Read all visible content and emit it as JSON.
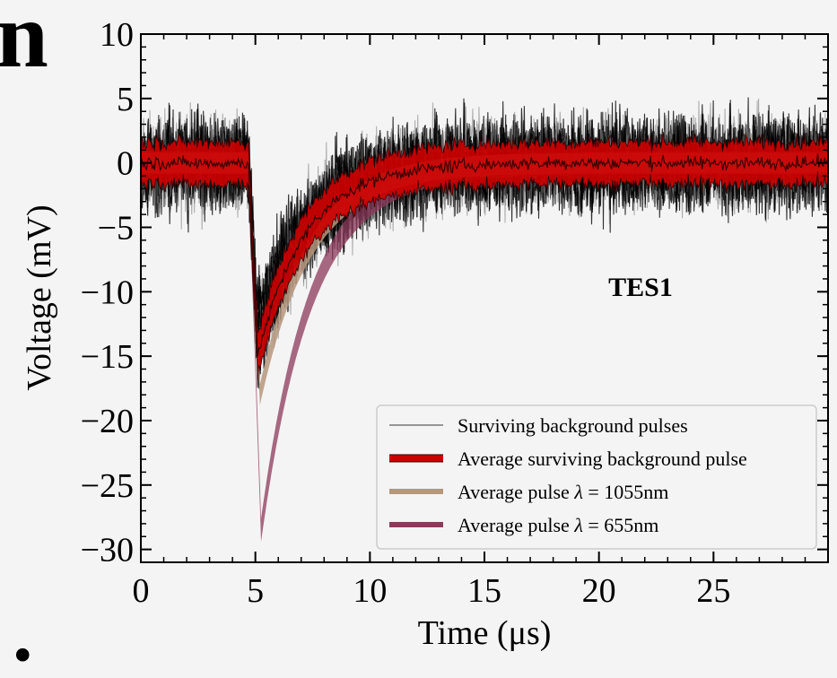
{
  "fragments": {
    "top_left": "n",
    "bottom_left": "."
  },
  "chart_data": {
    "type": "line",
    "xlabel": "Time (μs)",
    "ylabel": "Voltage (mV)",
    "xlim": [
      0,
      30
    ],
    "ylim": [
      -31,
      10
    ],
    "x_ticks": [
      0,
      5,
      10,
      15,
      20,
      25
    ],
    "y_ticks": [
      10,
      5,
      0,
      -5,
      -10,
      -15,
      -20,
      -25,
      -30
    ],
    "x_tick_labels": [
      "0",
      "5",
      "10",
      "15",
      "20",
      "25"
    ],
    "y_tick_labels": [
      "10",
      "5",
      "0",
      "−5",
      "−10",
      "−15",
      "−20",
      "−25",
      "−30"
    ],
    "annotation": "TES1",
    "legend_position": "lower-right",
    "grid": false,
    "series": [
      {
        "name": "Surviving background pulses",
        "color": "#000000",
        "pulse_onset": 4.7,
        "baseline": 0,
        "noise_amplitude": 3.8,
        "peak_value": -14,
        "peak_time": 5.1,
        "recovery_time_constant": 2.2
      },
      {
        "name": "Average surviving background pulse",
        "color": "#cc0000",
        "pulse_onset": 4.7,
        "baseline": 0,
        "band_halfwidth": 1.6,
        "peak_value": -15,
        "peak_time": 5.1,
        "recovery_time_constant": 2.1
      },
      {
        "name": "Average pulse λ = 1055nm",
        "label_prefix": "Average pulse ",
        "label_lambda": "λ",
        "label_suffix": " = 1055nm",
        "color": "#b5977c",
        "pulse_onset": 4.7,
        "baseline": 0,
        "peak_value": -18,
        "peak_time": 5.2,
        "recovery_time_constant": 2.2
      },
      {
        "name": "Average pulse λ = 655nm",
        "label_prefix": "Average pulse ",
        "label_lambda": "λ",
        "label_suffix": " = 655nm",
        "color": "#8c3a5a",
        "pulse_onset": 4.7,
        "baseline": 0,
        "peak_value": -28.5,
        "peak_time": 5.25,
        "recovery_time_constant": 2.2
      }
    ]
  }
}
